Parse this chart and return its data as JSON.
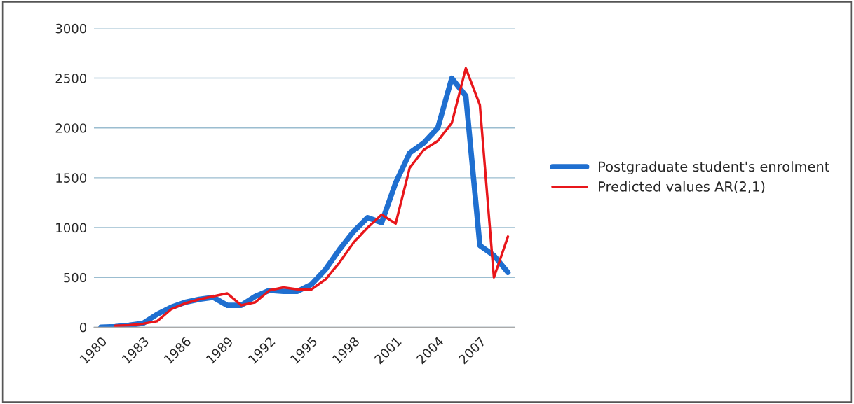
{
  "chart_data": {
    "type": "line",
    "categories": [
      "1980",
      null,
      null,
      "1983",
      null,
      null,
      "1986",
      null,
      null,
      "1989",
      null,
      null,
      "1992",
      null,
      null,
      "1995",
      null,
      null,
      "1998",
      null,
      null,
      "2001",
      null,
      null,
      "2004",
      null,
      null,
      "2007",
      null,
      null
    ],
    "series": [
      {
        "name": "Postgraduate student's enrolment",
        "color": "#1f6fd0",
        "values": [
          0,
          5,
          20,
          40,
          130,
          200,
          250,
          280,
          300,
          220,
          220,
          310,
          370,
          360,
          360,
          430,
          580,
          780,
          960,
          1100,
          1050,
          1450,
          1750,
          1850,
          2000,
          2500,
          2320,
          820,
          720,
          550
        ]
      },
      {
        "name": "Predicted values AR(2,1)",
        "color": "#e8161b",
        "values": [
          null,
          15,
          20,
          35,
          60,
          180,
          240,
          280,
          310,
          340,
          220,
          250,
          370,
          400,
          380,
          380,
          480,
          650,
          850,
          1000,
          1130,
          1040,
          1600,
          1780,
          1870,
          2050,
          2600,
          2230,
          500,
          910
        ]
      }
    ],
    "ylim": [
      0,
      3000
    ],
    "yticks": [
      0,
      500,
      1000,
      1500,
      2000,
      2500,
      3000
    ],
    "grid": "y",
    "legend": "right",
    "marker": "none",
    "line_style": "solid"
  }
}
